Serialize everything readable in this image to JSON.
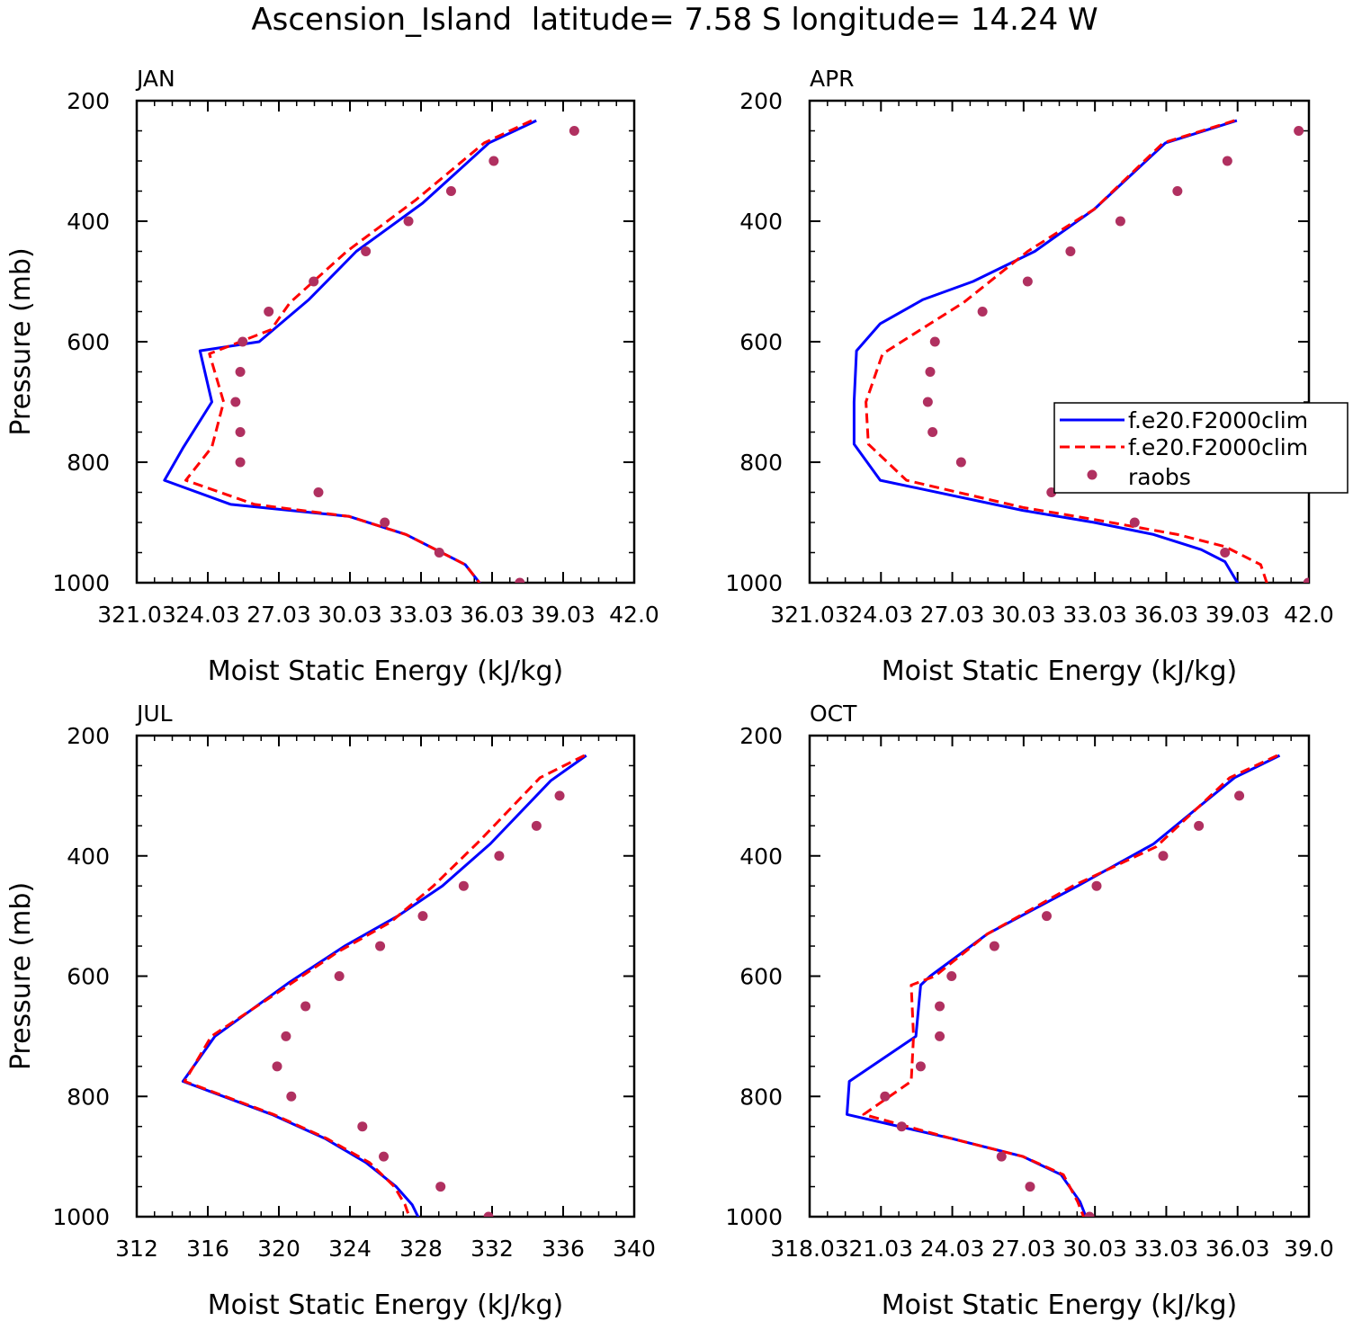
{
  "title": "Ascension_Island  latitude= 7.58 S longitude= 14.24 W",
  "legend": {
    "entries": [
      "f.e20.F2000clim",
      "f.e20.F2000clim",
      "raobs"
    ],
    "placement": "in APR panel, right side"
  },
  "colors": {
    "model1": "#0000ff",
    "model2": "#ff0000",
    "obs": "#b03060"
  },
  "chart_data": [
    {
      "type": "line",
      "panel": "JAN",
      "xlabel": "Moist Static Energy (kJ/kg)",
      "ylabel": "Pressure (mb)",
      "xlim": [
        321.03,
        342.03
      ],
      "ylim": [
        200,
        1000
      ],
      "xtick_values": [
        321.03,
        324.03,
        327.03,
        330.03,
        333.03,
        336.03,
        339.03,
        342.03
      ],
      "xtick_labels": [
        "321.03",
        "24.03",
        "27.03",
        "30.03",
        "33.03",
        "36.03",
        "39.03",
        "42.0"
      ],
      "yticks": [
        200,
        400,
        600,
        800,
        1000
      ],
      "series": [
        {
          "name": "f.e20.F2000clim",
          "style": "solid",
          "x": [
            337.9,
            335.9,
            333.1,
            330.3,
            328.3,
            326.2,
            323.7,
            324.2,
            323.0,
            322.2,
            325.0,
            330.0,
            332.4,
            334.9,
            335.6
          ],
          "y": [
            233,
            270,
            370,
            450,
            530,
            600,
            615,
            700,
            775,
            830,
            870,
            890,
            920,
            970,
            1005
          ]
        },
        {
          "name": "f.e20.F2000clim",
          "style": "dashed",
          "x": [
            337.7,
            335.7,
            332.8,
            329.9,
            327.5,
            326.7,
            324.1,
            324.7,
            324.2,
            323.1,
            326.0,
            330.0,
            332.4,
            334.9,
            335.5
          ],
          "y": [
            233,
            270,
            365,
            450,
            535,
            580,
            620,
            700,
            775,
            830,
            870,
            890,
            920,
            970,
            1000
          ]
        },
        {
          "name": "raobs",
          "style": "points",
          "x": [
            339.5,
            336.1,
            334.3,
            332.5,
            330.7,
            328.5,
            326.6,
            325.5,
            325.4,
            325.2,
            325.4,
            325.4,
            328.7,
            331.5,
            333.8,
            337.2
          ],
          "y": [
            250,
            300,
            350,
            400,
            450,
            500,
            550,
            600,
            650,
            700,
            750,
            800,
            850,
            900,
            950,
            1000
          ]
        }
      ]
    },
    {
      "type": "line",
      "panel": "APR",
      "xlabel": "Moist Static Energy (kJ/kg)",
      "ylabel": "",
      "xlim": [
        321.03,
        342.03
      ],
      "ylim": [
        200,
        1000
      ],
      "xtick_values": [
        321.03,
        324.03,
        327.03,
        330.03,
        333.03,
        336.03,
        339.03,
        342.03
      ],
      "xtick_labels": [
        "321.03",
        "24.03",
        "27.03",
        "30.03",
        "33.03",
        "36.03",
        "39.03",
        "42.0"
      ],
      "yticks": [
        200,
        400,
        600,
        800,
        1000
      ],
      "series": [
        {
          "name": "f.e20.F2000clim",
          "style": "solid",
          "x": [
            339.0,
            336.0,
            333.0,
            330.5,
            327.9,
            325.8,
            324.0,
            323.0,
            322.9,
            322.9,
            324.0,
            330.0,
            333.0,
            335.5,
            337.5,
            338.5,
            339.1
          ],
          "y": [
            233,
            270,
            380,
            450,
            500,
            530,
            570,
            615,
            700,
            770,
            830,
            880,
            900,
            920,
            945,
            965,
            1005
          ]
        },
        {
          "name": "f.e20.F2000clim",
          "style": "dashed",
          "x": [
            338.9,
            335.9,
            333.0,
            330.2,
            327.5,
            326.1,
            324.1,
            323.4,
            323.5,
            325.1,
            330.0,
            333.0,
            336.5,
            338.5,
            340.0,
            340.3
          ],
          "y": [
            233,
            270,
            380,
            450,
            535,
            570,
            620,
            700,
            770,
            830,
            875,
            895,
            920,
            940,
            970,
            1005
          ]
        },
        {
          "name": "raobs",
          "style": "points",
          "x": [
            341.6,
            338.6,
            336.5,
            334.1,
            332.0,
            330.2,
            328.3,
            326.3,
            326.1,
            326.0,
            326.2,
            327.4,
            331.2,
            334.7,
            338.5,
            342.0
          ],
          "y": [
            250,
            300,
            350,
            400,
            450,
            500,
            550,
            600,
            650,
            700,
            750,
            800,
            850,
            900,
            950,
            1000
          ]
        }
      ]
    },
    {
      "type": "line",
      "panel": "JUL",
      "xlabel": "Moist Static Energy (kJ/kg)",
      "ylabel": "Pressure (mb)",
      "xlim": [
        312,
        340
      ],
      "ylim": [
        200,
        1000
      ],
      "xtick_values": [
        312,
        316,
        320,
        324,
        328,
        332,
        336,
        340
      ],
      "xtick_labels": [
        "312",
        "316",
        "320",
        "324",
        "328",
        "332",
        "336",
        "340"
      ],
      "yticks": [
        200,
        400,
        600,
        800,
        1000
      ],
      "series": [
        {
          "name": "f.e20.F2000clim",
          "style": "solid",
          "x": [
            337.3,
            335.3,
            331.9,
            329.2,
            326.7,
            323.7,
            320.6,
            316.4,
            314.6,
            319.6,
            322.6,
            324.9,
            326.6,
            327.5,
            328.0
          ],
          "y": [
            233,
            275,
            380,
            450,
            500,
            550,
            610,
            700,
            775,
            830,
            870,
            910,
            950,
            980,
            1010
          ]
        },
        {
          "name": "f.e20.F2000clim",
          "style": "dashed",
          "x": [
            337.2,
            334.7,
            331.3,
            328.7,
            326.3,
            323.3,
            320.3,
            316.2,
            314.7,
            319.7,
            322.7,
            325.1,
            326.5,
            327.1,
            327.4
          ],
          "y": [
            233,
            270,
            375,
            450,
            510,
            560,
            620,
            700,
            775,
            830,
            870,
            910,
            950,
            980,
            1005
          ]
        },
        {
          "name": "raobs",
          "style": "points",
          "x": [
            335.8,
            334.5,
            332.4,
            330.4,
            328.1,
            325.7,
            323.4,
            321.5,
            320.4,
            319.9,
            320.7,
            324.7,
            325.9,
            329.1,
            331.8
          ],
          "y": [
            300,
            350,
            400,
            450,
            500,
            550,
            600,
            650,
            700,
            750,
            800,
            850,
            900,
            950,
            1000
          ]
        }
      ]
    },
    {
      "type": "line",
      "panel": "OCT",
      "xlabel": "Moist Static Energy (kJ/kg)",
      "ylabel": "",
      "xlim": [
        318.03,
        339.03
      ],
      "ylim": [
        200,
        1000
      ],
      "xtick_values": [
        318.03,
        321.03,
        324.03,
        327.03,
        330.03,
        333.03,
        336.03,
        339.03
      ],
      "xtick_labels": [
        "318.03",
        "21.03",
        "24.03",
        "27.03",
        "30.03",
        "33.03",
        "36.03",
        "39.0"
      ],
      "yticks": [
        200,
        400,
        600,
        800,
        1000
      ],
      "series": [
        {
          "name": "f.e20.F2000clim",
          "style": "solid",
          "x": [
            337.8,
            335.9,
            332.5,
            329.3,
            325.5,
            323.1,
            322.7,
            322.5,
            319.7,
            319.6,
            324.0,
            327.0,
            328.6,
            329.4,
            329.7
          ],
          "y": [
            233,
            270,
            380,
            450,
            530,
            600,
            615,
            700,
            775,
            830,
            870,
            900,
            930,
            975,
            1005
          ]
        },
        {
          "name": "f.e20.F2000clim",
          "style": "dashed",
          "x": [
            337.7,
            335.7,
            332.6,
            329.1,
            325.5,
            323.3,
            322.3,
            322.4,
            322.3,
            320.3,
            324.0,
            327.0,
            328.7,
            329.3,
            329.6
          ],
          "y": [
            233,
            270,
            385,
            450,
            530,
            600,
            615,
            700,
            775,
            830,
            870,
            900,
            930,
            975,
            1005
          ]
        },
        {
          "name": "raobs",
          "style": "points",
          "x": [
            336.1,
            334.4,
            332.9,
            330.1,
            328.0,
            325.8,
            324.0,
            323.5,
            323.5,
            322.7,
            321.2,
            321.9,
            326.1,
            327.3,
            329.8
          ],
          "y": [
            300,
            350,
            400,
            450,
            500,
            550,
            600,
            650,
            700,
            750,
            800,
            850,
            900,
            950,
            1000
          ]
        }
      ]
    }
  ]
}
